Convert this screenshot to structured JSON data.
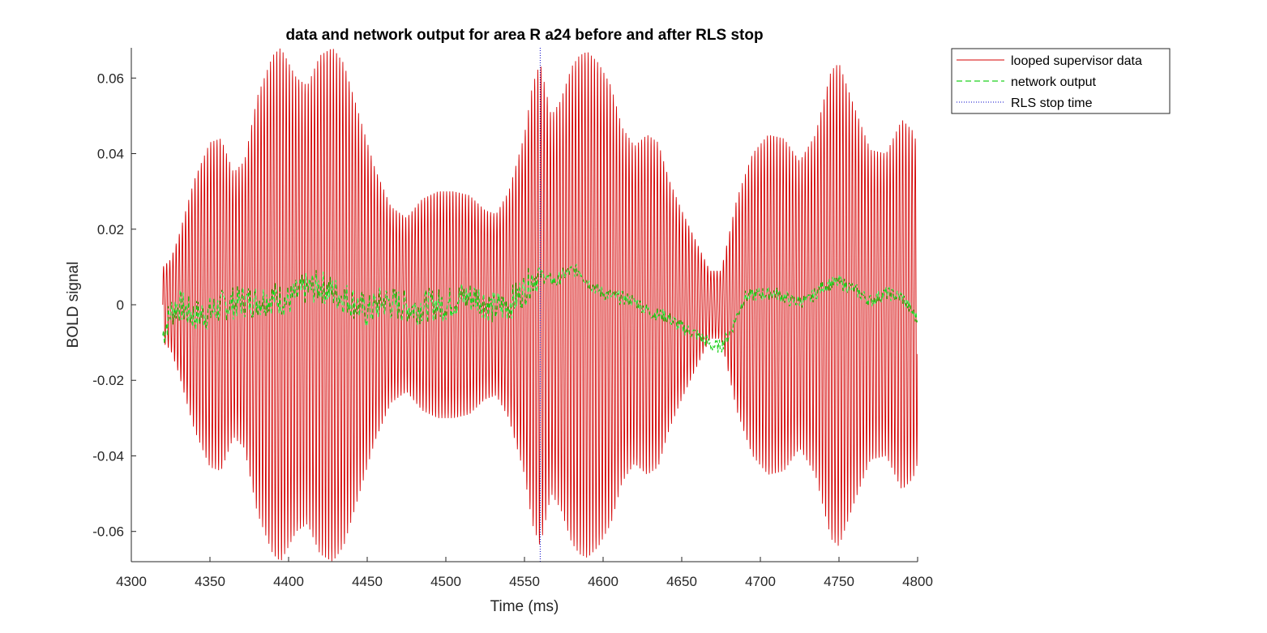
{
  "chart_data": {
    "type": "line",
    "title": "data and network output for area R a24 before and after RLS stop",
    "xlabel": "Time (ms)",
    "ylabel": "BOLD signal",
    "xlim": [
      4300,
      4800
    ],
    "ylim": [
      -0.068,
      0.068
    ],
    "x_ticks": [
      4300,
      4350,
      4400,
      4450,
      4500,
      4550,
      4600,
      4650,
      4700,
      4750,
      4800
    ],
    "x_tick_labels": [
      "4300",
      "4350",
      "4400",
      "4450",
      "4500",
      "4550",
      "4600",
      "4650",
      "4700",
      "4750",
      "4800"
    ],
    "y_ticks": [
      0.06,
      0.04,
      0.02,
      0,
      -0.02,
      -0.04,
      -0.06
    ],
    "y_tick_labels": [
      "0.06",
      "0.04",
      "0.02",
      "0",
      "-0.02",
      "-0.04",
      "-0.06"
    ],
    "grid": false,
    "legend_position": "outside-top-right",
    "rls_stop_time": 4560,
    "series": [
      {
        "name": "looped supervisor data",
        "color": "#d40000",
        "style": "solid",
        "oscillation_period_ms": 2,
        "t_start": 4320,
        "t_end": 4800,
        "envelope": [
          [
            4320,
            0.01
          ],
          [
            4325,
            0.012
          ],
          [
            4330,
            0.018
          ],
          [
            4340,
            0.033
          ],
          [
            4350,
            0.043
          ],
          [
            4357,
            0.044
          ],
          [
            4365,
            0.035
          ],
          [
            4372,
            0.038
          ],
          [
            4380,
            0.055
          ],
          [
            4390,
            0.066
          ],
          [
            4395,
            0.068
          ],
          [
            4405,
            0.06
          ],
          [
            4412,
            0.058
          ],
          [
            4420,
            0.066
          ],
          [
            4428,
            0.068
          ],
          [
            4435,
            0.064
          ],
          [
            4445,
            0.05
          ],
          [
            4455,
            0.036
          ],
          [
            4465,
            0.026
          ],
          [
            4475,
            0.023
          ],
          [
            4485,
            0.028
          ],
          [
            4495,
            0.03
          ],
          [
            4505,
            0.03
          ],
          [
            4515,
            0.029
          ],
          [
            4525,
            0.025
          ],
          [
            4532,
            0.024
          ],
          [
            4540,
            0.03
          ],
          [
            4550,
            0.045
          ],
          [
            4555,
            0.058
          ],
          [
            4560,
            0.064
          ],
          [
            4567,
            0.05
          ],
          [
            4573,
            0.054
          ],
          [
            4580,
            0.063
          ],
          [
            4585,
            0.066
          ],
          [
            4590,
            0.067
          ],
          [
            4597,
            0.064
          ],
          [
            4605,
            0.058
          ],
          [
            4612,
            0.047
          ],
          [
            4620,
            0.042
          ],
          [
            4628,
            0.045
          ],
          [
            4635,
            0.043
          ],
          [
            4642,
            0.033
          ],
          [
            4650,
            0.025
          ],
          [
            4660,
            0.016
          ],
          [
            4668,
            0.009
          ],
          [
            4675,
            0.009
          ],
          [
            4685,
            0.028
          ],
          [
            4695,
            0.04
          ],
          [
            4705,
            0.045
          ],
          [
            4715,
            0.044
          ],
          [
            4725,
            0.038
          ],
          [
            4735,
            0.045
          ],
          [
            4745,
            0.062
          ],
          [
            4750,
            0.064
          ],
          [
            4760,
            0.052
          ],
          [
            4770,
            0.041
          ],
          [
            4780,
            0.04
          ],
          [
            4790,
            0.049
          ],
          [
            4797,
            0.046
          ],
          [
            4800,
            0.042
          ]
        ]
      },
      {
        "name": "network output",
        "color": "#1fd11f",
        "style": "dashed",
        "t_start": 4320,
        "t_end": 4800,
        "trend": [
          [
            4320,
            -0.008
          ],
          [
            4325,
            -0.002
          ],
          [
            4330,
            0.0
          ],
          [
            4340,
            -0.003
          ],
          [
            4350,
            -0.002
          ],
          [
            4360,
            0.0
          ],
          [
            4370,
            0.001
          ],
          [
            4380,
            0.001
          ],
          [
            4390,
            0.002
          ],
          [
            4400,
            0.001
          ],
          [
            4410,
            0.004
          ],
          [
            4420,
            0.005
          ],
          [
            4430,
            0.003
          ],
          [
            4440,
            0.001
          ],
          [
            4450,
            -0.002
          ],
          [
            4460,
            0.001
          ],
          [
            4470,
            0.0
          ],
          [
            4480,
            -0.001
          ],
          [
            4490,
            0.0
          ],
          [
            4500,
            0.0
          ],
          [
            4510,
            0.002
          ],
          [
            4520,
            0.002
          ],
          [
            4530,
            -0.001
          ],
          [
            4540,
            0.0
          ],
          [
            4550,
            0.004
          ],
          [
            4555,
            0.007
          ],
          [
            4560,
            0.008
          ],
          [
            4565,
            0.007
          ],
          [
            4570,
            0.006
          ],
          [
            4575,
            0.008
          ],
          [
            4580,
            0.009
          ],
          [
            4585,
            0.009
          ],
          [
            4590,
            0.006
          ],
          [
            4600,
            0.003
          ],
          [
            4610,
            0.002
          ],
          [
            4620,
            0.001
          ],
          [
            4630,
            -0.002
          ],
          [
            4640,
            -0.003
          ],
          [
            4650,
            -0.006
          ],
          [
            4660,
            -0.008
          ],
          [
            4670,
            -0.011
          ],
          [
            4675,
            -0.011
          ],
          [
            4680,
            -0.008
          ],
          [
            4690,
            0.002
          ],
          [
            4700,
            0.003
          ],
          [
            4710,
            0.003
          ],
          [
            4720,
            0.001
          ],
          [
            4730,
            0.001
          ],
          [
            4740,
            0.005
          ],
          [
            4750,
            0.006
          ],
          [
            4760,
            0.004
          ],
          [
            4770,
            0.001
          ],
          [
            4780,
            0.003
          ],
          [
            4790,
            0.002
          ],
          [
            4800,
            -0.004
          ]
        ]
      },
      {
        "name": "RLS stop time",
        "color": "#0000c8",
        "style": "dotted"
      }
    ]
  }
}
